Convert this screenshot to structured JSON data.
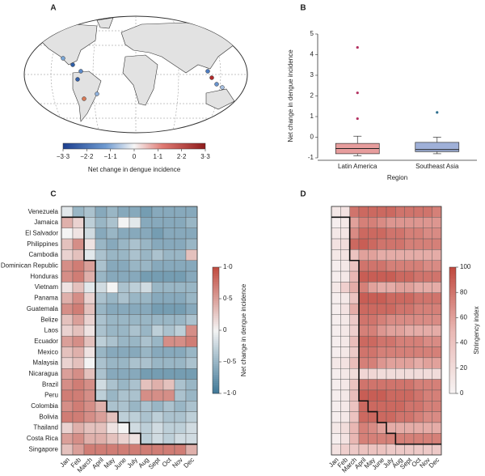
{
  "chart_data": [
    {
      "type": "map",
      "panel": "A",
      "clim": [
        -3.3,
        3.3
      ],
      "cticks": [
        {
          "value": -3.3,
          "label": "−3·3"
        },
        {
          "value": -2.2,
          "label": "−2·2"
        },
        {
          "value": -1.1,
          "label": "−1·1"
        },
        0,
        {
          "value": 1.1,
          "label": "1·1"
        },
        {
          "value": 2.2,
          "label": "2·2"
        },
        {
          "value": 3.3,
          "label": "3·3"
        }
      ],
      "colorbar_label": "Net change in dengue incidence"
    },
    {
      "type": "box",
      "panel": "B",
      "y_label": "Net change in dengue incidence",
      "x_label": "Region",
      "ylim": [
        -1,
        5
      ],
      "yticks": [
        -1,
        0,
        1,
        2,
        3,
        4,
        5
      ],
      "series": [
        {
          "name": "Latin America",
          "color": "#e79d9d",
          "whisker_low": -0.9,
          "q1": -0.8,
          "median": -0.55,
          "q3": -0.3,
          "whisker_high": 0.05,
          "outliers": [
            0.9,
            2.15,
            4.35
          ]
        },
        {
          "name": "Southeast Asia",
          "color": "#9fb0d8",
          "whisker_low": -0.8,
          "q1": -0.7,
          "median": -0.6,
          "q3": -0.25,
          "whisker_high": 0.0,
          "outliers": [
            1.2
          ]
        }
      ]
    },
    {
      "type": "heatmap",
      "panel": "C",
      "rows": [
        "Venezuela",
        "Jamaica",
        "El Salvador",
        "Philippines",
        "Cambodia",
        "Dominican Republic",
        "Honduras",
        "Vietnam",
        "Panama",
        "Guatemala",
        "Belize",
        "Laos",
        "Ecuador",
        "Mexico",
        "Malaysia",
        "Nicaragua",
        "Brazil",
        "Peru",
        "Colombia",
        "Bolivia",
        "Thailand",
        "Costa Rica",
        "Singapore"
      ],
      "columns": [
        "Jan",
        "Feb",
        "March",
        "April",
        "May",
        "June",
        "July",
        "Aug",
        "Sept",
        "Oct",
        "Nov",
        "Dec"
      ],
      "clim": [
        -1,
        1
      ],
      "cticks": [
        {
          "value": 1,
          "label": "1·0"
        },
        {
          "value": 0.5,
          "label": "0·5"
        },
        0,
        {
          "value": -0.5,
          "label": "−0·5"
        },
        {
          "value": -1,
          "label": "−1·0"
        }
      ],
      "colors": [
        "#3e7796",
        "#f4f4f4",
        "#c04a3e"
      ],
      "colorbar_label": "Net change in dengue incidence",
      "values": [
        [
          -0.1,
          -0.5,
          -0.4,
          -0.6,
          -0.5,
          -0.6,
          -0.6,
          -0.7,
          -0.6,
          -0.6,
          -0.6,
          -0.6
        ],
        [
          0.4,
          0.2,
          -0.3,
          -0.5,
          -0.4,
          0.0,
          -0.1,
          -0.6,
          -0.6,
          -0.6,
          -0.6,
          -0.5
        ],
        [
          0.0,
          0.1,
          -0.2,
          -0.6,
          -0.5,
          -0.6,
          -0.6,
          -0.6,
          -0.7,
          -0.6,
          -0.6,
          -0.6
        ],
        [
          0.3,
          0.6,
          0.1,
          -0.5,
          -0.6,
          -0.5,
          -0.4,
          -0.5,
          -0.6,
          -0.6,
          -0.6,
          -0.5
        ],
        [
          0.2,
          0.3,
          -0.1,
          -0.4,
          -0.5,
          -0.5,
          -0.4,
          -0.5,
          -0.4,
          -0.5,
          -0.5,
          0.3
        ],
        [
          0.6,
          0.7,
          0.5,
          -0.4,
          -0.6,
          -0.6,
          -0.5,
          -0.5,
          -0.6,
          -0.6,
          -0.6,
          -0.6
        ],
        [
          0.6,
          0.7,
          0.4,
          -0.5,
          -0.6,
          -0.6,
          -0.6,
          -0.7,
          -0.7,
          -0.7,
          -0.7,
          -0.6
        ],
        [
          0.1,
          0.3,
          -0.1,
          -0.2,
          0.0,
          -0.4,
          -0.3,
          -0.2,
          -0.5,
          -0.5,
          -0.5,
          -0.5
        ],
        [
          0.4,
          0.6,
          0.2,
          -0.4,
          -0.5,
          -0.4,
          -0.5,
          -0.5,
          -0.6,
          -0.6,
          -0.6,
          -0.5
        ],
        [
          0.6,
          0.7,
          0.3,
          -0.5,
          -0.6,
          -0.6,
          -0.6,
          -0.6,
          -0.7,
          -0.7,
          -0.7,
          -0.6
        ],
        [
          0.3,
          0.5,
          0.2,
          -0.4,
          -0.5,
          -0.5,
          -0.5,
          -0.5,
          -0.5,
          -0.5,
          -0.5,
          -0.4
        ],
        [
          0.2,
          0.3,
          0.1,
          -0.4,
          -0.5,
          -0.5,
          -0.4,
          -0.5,
          -0.3,
          -0.4,
          -0.3,
          0.6
        ],
        [
          0.5,
          0.6,
          0.3,
          -0.3,
          -0.4,
          -0.5,
          -0.5,
          -0.4,
          -0.5,
          0.6,
          0.6,
          0.7
        ],
        [
          0.3,
          0.4,
          0.1,
          -0.5,
          -0.6,
          -0.6,
          -0.6,
          -0.5,
          -0.6,
          -0.6,
          -0.6,
          -0.5
        ],
        [
          0.2,
          0.3,
          0.0,
          -0.4,
          -0.5,
          -0.5,
          -0.4,
          -0.4,
          -0.5,
          -0.5,
          -0.5,
          -0.4
        ],
        [
          0.5,
          0.6,
          0.3,
          -0.4,
          -0.6,
          -0.6,
          -0.6,
          -0.7,
          -0.7,
          -0.7,
          -0.7,
          -0.7
        ],
        [
          0.6,
          0.7,
          0.6,
          -0.2,
          -0.4,
          -0.5,
          -0.4,
          0.3,
          0.4,
          0.3,
          -0.4,
          -0.5
        ],
        [
          0.7,
          0.7,
          0.6,
          -0.3,
          -0.5,
          -0.4,
          -0.4,
          0.6,
          0.6,
          0.6,
          -0.4,
          -0.5
        ],
        [
          0.6,
          0.7,
          0.6,
          0.4,
          -0.4,
          -0.4,
          -0.5,
          -0.4,
          -0.5,
          -0.4,
          -0.5,
          -0.4
        ],
        [
          0.7,
          0.7,
          0.6,
          0.5,
          0.3,
          -0.3,
          -0.3,
          -0.4,
          -0.3,
          -0.4,
          -0.4,
          -0.3
        ],
        [
          0.2,
          0.4,
          0.3,
          0.3,
          0.1,
          0.0,
          -0.2,
          -0.3,
          -0.2,
          -0.3,
          -0.3,
          -0.2
        ],
        [
          0.5,
          0.6,
          0.4,
          0.4,
          0.3,
          0.2,
          0.1,
          -0.3,
          -0.2,
          -0.3,
          -0.2,
          -0.2
        ],
        [
          0.3,
          0.5,
          0.7,
          0.7,
          0.7,
          0.7,
          0.7,
          0.7,
          0.7,
          0.7,
          0.7,
          0.4
        ]
      ]
    },
    {
      "type": "heatmap",
      "panel": "D",
      "columns": [
        "Jan",
        "Feb",
        "March",
        "April",
        "May",
        "June",
        "July",
        "Aug",
        "Sept",
        "Oct",
        "Nov",
        "Dec"
      ],
      "clim": [
        0,
        100
      ],
      "cticks": [
        100,
        80,
        60,
        40,
        20,
        0
      ],
      "colors": [
        "#f7f4f4",
        "#e9b7b3",
        "#c0483d"
      ],
      "colorbar_label": "Stringency index",
      "values": [
        [
          10,
          15,
          80,
          85,
          85,
          85,
          85,
          80,
          80,
          80,
          80,
          75
        ],
        [
          5,
          10,
          60,
          75,
          75,
          70,
          65,
          65,
          65,
          65,
          65,
          65
        ],
        [
          10,
          12,
          70,
          85,
          85,
          85,
          80,
          80,
          75,
          75,
          70,
          70
        ],
        [
          15,
          20,
          85,
          90,
          85,
          80,
          80,
          80,
          75,
          75,
          75,
          75
        ],
        [
          10,
          15,
          40,
          60,
          60,
          55,
          55,
          55,
          55,
          55,
          55,
          55
        ],
        [
          5,
          10,
          40,
          80,
          80,
          80,
          75,
          75,
          75,
          75,
          70,
          70
        ],
        [
          5,
          10,
          50,
          90,
          90,
          90,
          90,
          85,
          85,
          80,
          80,
          80
        ],
        [
          10,
          30,
          55,
          75,
          60,
          55,
          55,
          60,
          60,
          55,
          55,
          55
        ],
        [
          5,
          10,
          40,
          90,
          90,
          90,
          85,
          85,
          85,
          80,
          80,
          80
        ],
        [
          5,
          15,
          55,
          85,
          85,
          85,
          85,
          80,
          80,
          75,
          75,
          75
        ],
        [
          5,
          10,
          35,
          80,
          80,
          75,
          70,
          70,
          70,
          70,
          70,
          70
        ],
        [
          5,
          10,
          30,
          75,
          75,
          65,
          60,
          60,
          55,
          55,
          55,
          55
        ],
        [
          5,
          10,
          45,
          85,
          85,
          80,
          80,
          75,
          75,
          75,
          70,
          70
        ],
        [
          5,
          10,
          35,
          80,
          80,
          75,
          75,
          75,
          75,
          75,
          75,
          75
        ],
        [
          10,
          15,
          45,
          75,
          75,
          65,
          60,
          60,
          60,
          55,
          60,
          60
        ],
        [
          5,
          10,
          20,
          25,
          25,
          20,
          20,
          20,
          20,
          20,
          20,
          20
        ],
        [
          5,
          10,
          40,
          80,
          80,
          80,
          80,
          80,
          80,
          75,
          75,
          75
        ],
        [
          5,
          10,
          45,
          90,
          90,
          90,
          85,
          85,
          85,
          80,
          75,
          75
        ],
        [
          5,
          10,
          40,
          85,
          85,
          85,
          85,
          85,
          80,
          80,
          75,
          75
        ],
        [
          5,
          10,
          40,
          85,
          85,
          85,
          85,
          80,
          80,
          75,
          70,
          70
        ],
        [
          10,
          20,
          50,
          75,
          70,
          60,
          55,
          55,
          55,
          55,
          55,
          55
        ],
        [
          5,
          15,
          50,
          75,
          75,
          75,
          75,
          75,
          75,
          75,
          75,
          75
        ],
        [
          15,
          30,
          35,
          40,
          40,
          40,
          35,
          35,
          35,
          35,
          35,
          35
        ]
      ]
    }
  ]
}
